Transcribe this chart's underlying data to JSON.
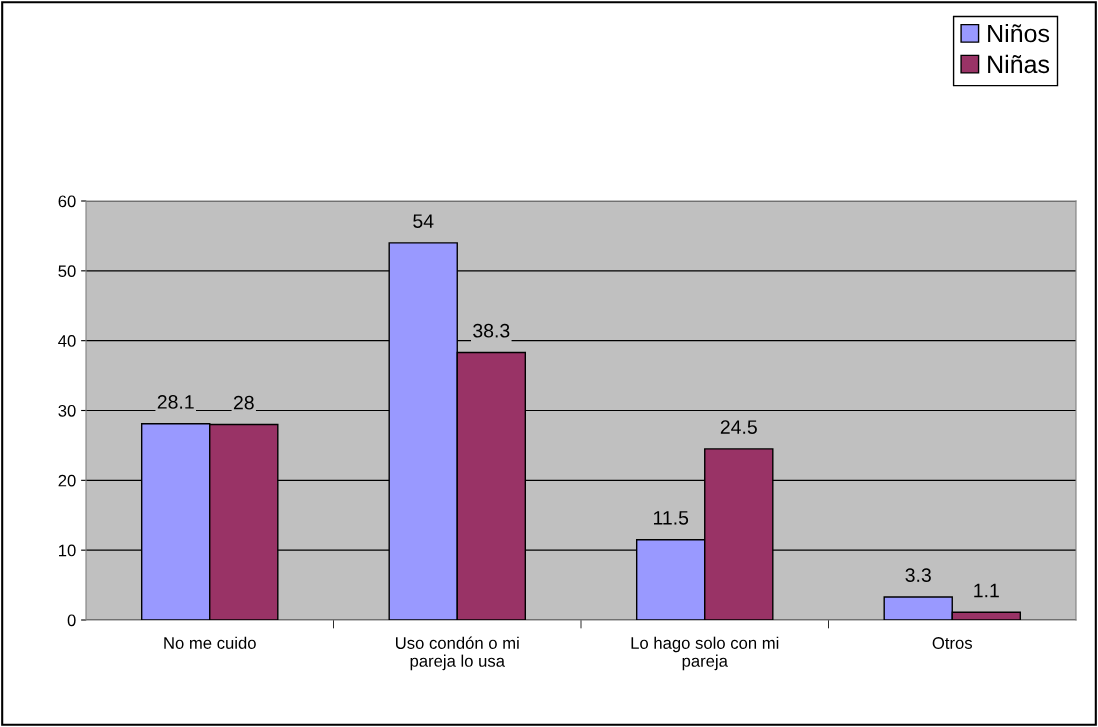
{
  "chart_data": {
    "type": "bar",
    "categories": [
      "No me cuido",
      "Uso condón o mi\npareja lo usa",
      "Lo hago solo con mi\npareja",
      "Otros"
    ],
    "series": [
      {
        "name": "Niños",
        "color": "#9999ff",
        "values": [
          28.1,
          54,
          11.5,
          3.3
        ]
      },
      {
        "name": "Niñas",
        "color": "#993366",
        "values": [
          28,
          38.3,
          24.5,
          1.1
        ]
      }
    ],
    "ylim": [
      0,
      60
    ],
    "yticks": [
      0,
      10,
      20,
      30,
      40,
      50,
      60
    ],
    "grid": "y",
    "legend": "top right",
    "data_labels": true
  }
}
